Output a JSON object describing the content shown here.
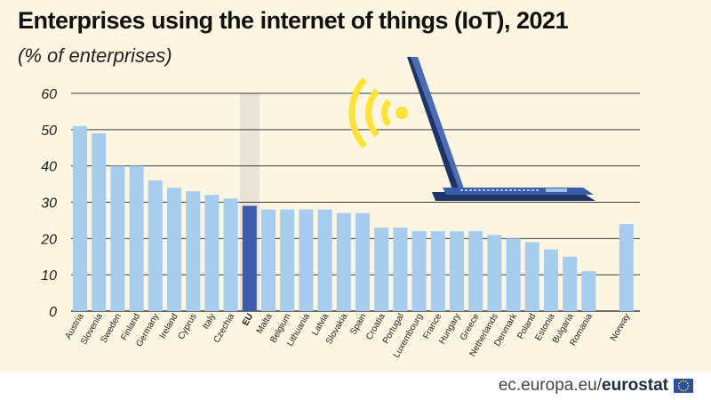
{
  "header": {
    "title": "Enterprises using the internet of things (IoT), 2021",
    "subtitle": "(% of enterprises)"
  },
  "footer": {
    "source_domain": "ec.europa.eu/",
    "source_brand": "eurostat"
  },
  "colors": {
    "background": "#fbf5e2",
    "bar": "#a7cdee",
    "bar_highlight": "#3f5bad",
    "eu_band": "#e8e3d6",
    "grid": "#3a3a3a",
    "wifi": "#ffe234",
    "laptop": "#3b5ca8"
  },
  "icons": [
    "wifi-signal-icon",
    "laptop-icon",
    "eu-flag-icon"
  ],
  "chart_data": {
    "type": "bar",
    "title": "Enterprises using the internet of things (IoT), 2021",
    "subtitle": "(% of enterprises)",
    "xlabel": "",
    "ylabel": "% of enterprises",
    "ylim": [
      0,
      60
    ],
    "yticks": [
      0,
      10,
      20,
      30,
      40,
      50,
      60
    ],
    "grid": true,
    "highlight": "EU",
    "gap_before": [
      "Norway"
    ],
    "categories": [
      "Austria",
      "Slovenia",
      "Sweden",
      "Finland",
      "Germany",
      "Ireland",
      "Cyprus",
      "Italy",
      "Czechia",
      "EU",
      "Malta",
      "Belgium",
      "Lithuania",
      "Latvia",
      "Slovakia",
      "Spain",
      "Croatia",
      "Portugal",
      "Luxembourg",
      "France",
      "Hungary",
      "Greece",
      "Netherlands",
      "Denmark",
      "Poland",
      "Estonia",
      "Bulgaria",
      "Romania",
      "Norway"
    ],
    "values": [
      51,
      49,
      40,
      40,
      36,
      34,
      33,
      32,
      31,
      29,
      28,
      28,
      28,
      28,
      27,
      27,
      23,
      23,
      22,
      22,
      22,
      22,
      21,
      20,
      19,
      17,
      15,
      11,
      24
    ]
  }
}
